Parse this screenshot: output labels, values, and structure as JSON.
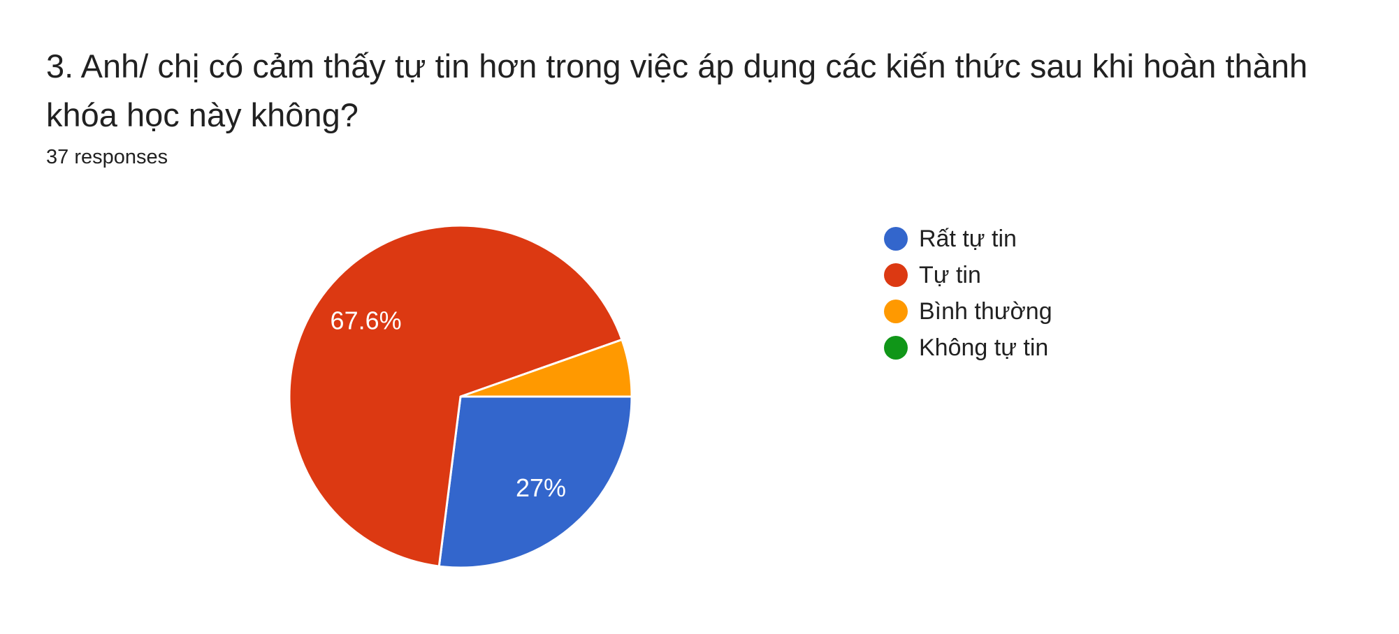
{
  "chart_data": {
    "type": "pie",
    "title": "3. Anh/ chị có cảm thấy tự tin hơn trong việc áp dụng các kiến thức sau khi hoàn thành khóa học này không?",
    "subtitle": "37 responses",
    "legend_position": "right",
    "start_angle_deg": 90,
    "direction": "clockwise",
    "background_color": "#ffffff",
    "slice_label_color": "#ffffff",
    "slice_border_color": "#ffffff",
    "slices": [
      {
        "name": "Rất tự tin",
        "percent": 27.0,
        "display_label": "27%",
        "color": "#3366CC"
      },
      {
        "name": "Tự tin",
        "percent": 67.6,
        "display_label": "67.6%",
        "color": "#DC3912"
      },
      {
        "name": "Bình thường",
        "percent": 5.4,
        "display_label": "",
        "color": "#FF9900"
      },
      {
        "name": "Không tự tin",
        "percent": 0,
        "display_label": "",
        "color": "#109618"
      }
    ]
  }
}
